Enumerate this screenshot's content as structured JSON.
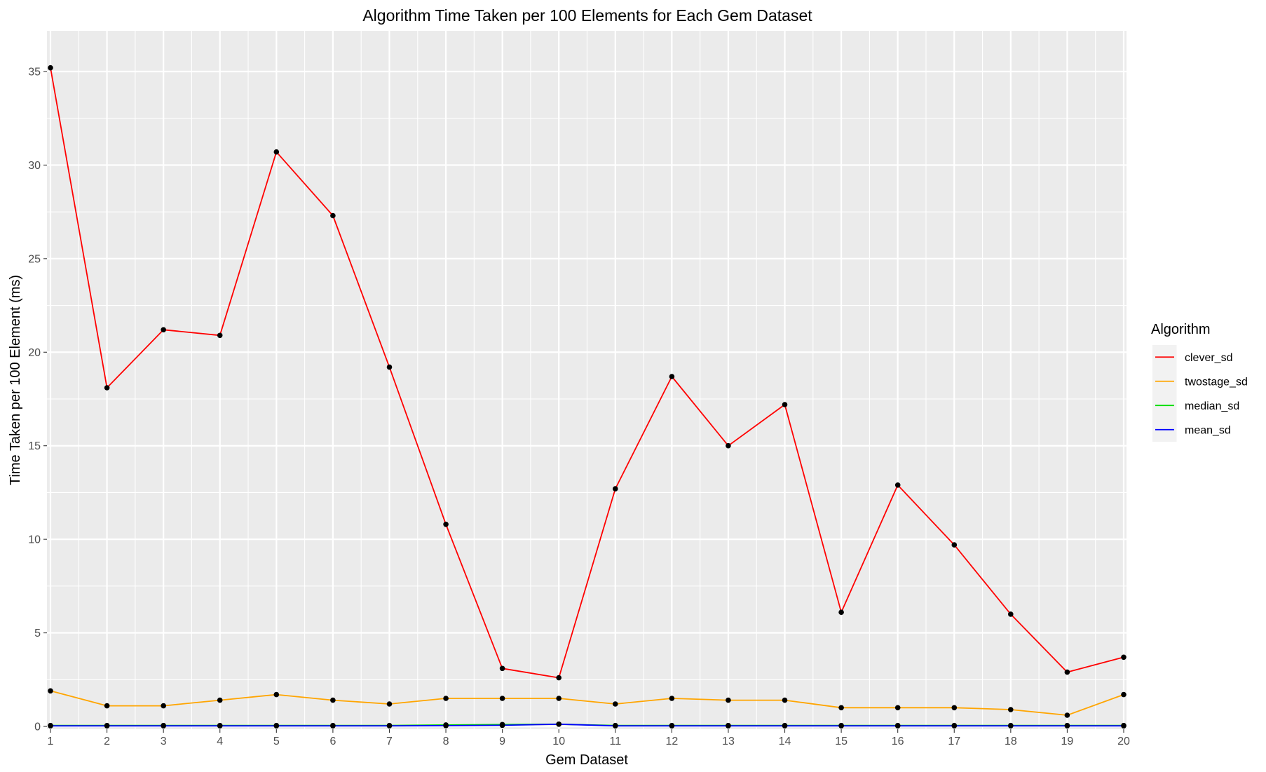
{
  "chart_data": {
    "type": "line",
    "title": "Algorithm Time Taken per 100 Elements for Each Gem Dataset",
    "xlabel": "Gem Dataset",
    "ylabel": "Time Taken per 100 Element (ms)",
    "x": [
      1,
      2,
      3,
      4,
      5,
      6,
      7,
      8,
      9,
      10,
      11,
      12,
      13,
      14,
      15,
      16,
      17,
      18,
      19,
      20
    ],
    "xlim": [
      1,
      20
    ],
    "ylim": [
      0,
      36
    ],
    "yticks": [
      0,
      5,
      10,
      15,
      20,
      25,
      30,
      35
    ],
    "grid": true,
    "markers": true,
    "marker_color": "#000000",
    "legend": {
      "title": "Algorithm",
      "position": "right"
    },
    "series": [
      {
        "name": "clever_sd",
        "color": "#ff0000",
        "values": [
          35.2,
          18.1,
          21.2,
          20.9,
          30.7,
          27.3,
          19.2,
          10.8,
          3.1,
          2.6,
          12.7,
          18.7,
          15.0,
          17.2,
          6.1,
          12.9,
          9.7,
          6.0,
          2.9,
          3.7
        ]
      },
      {
        "name": "twostage_sd",
        "color": "#ffa500",
        "values": [
          1.9,
          1.1,
          1.1,
          1.4,
          1.7,
          1.4,
          1.2,
          1.5,
          1.5,
          1.5,
          1.2,
          1.5,
          1.4,
          1.4,
          1.0,
          1.0,
          1.0,
          0.9,
          0.6,
          1.7
        ]
      },
      {
        "name": "median_sd",
        "color": "#00dd00",
        "values": [
          0.05,
          0.05,
          0.05,
          0.05,
          0.05,
          0.05,
          0.05,
          0.08,
          0.1,
          0.12,
          0.05,
          0.05,
          0.05,
          0.05,
          0.05,
          0.05,
          0.05,
          0.05,
          0.05,
          0.05
        ]
      },
      {
        "name": "mean_sd",
        "color": "#0000ff",
        "values": [
          0.03,
          0.03,
          0.03,
          0.03,
          0.03,
          0.03,
          0.03,
          0.04,
          0.06,
          0.12,
          0.03,
          0.03,
          0.03,
          0.03,
          0.03,
          0.03,
          0.03,
          0.03,
          0.03,
          0.03
        ]
      }
    ]
  }
}
